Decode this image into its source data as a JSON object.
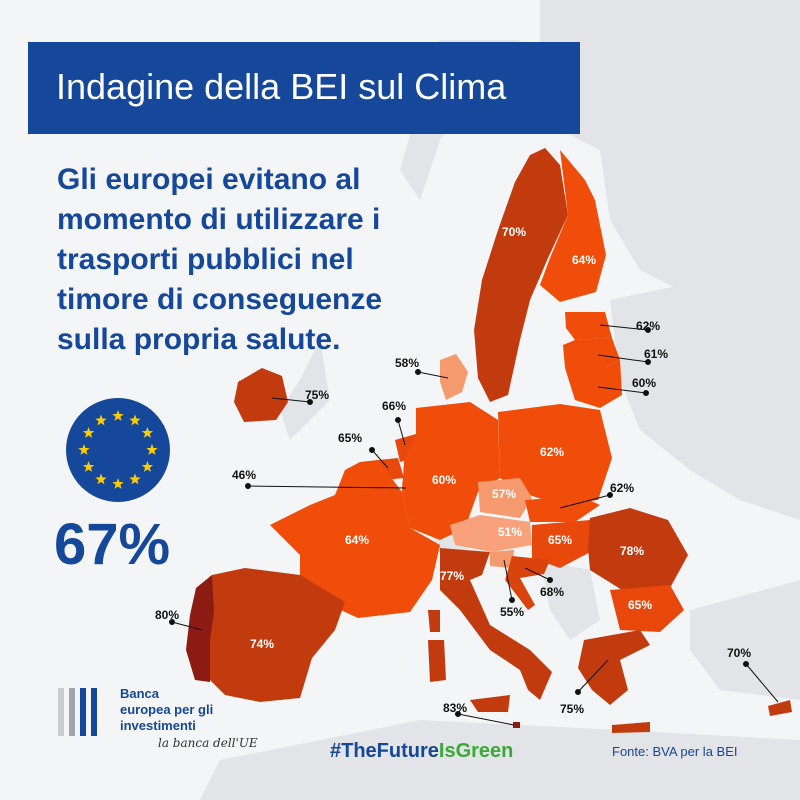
{
  "header": {
    "title": "Indagine della BEI sul Clima"
  },
  "headline": {
    "lines": [
      "Gli europei evitano al",
      "momento di utilizzare i",
      "trasporti pubblici nel",
      "timore di conseguenze",
      "sulla propria salute."
    ]
  },
  "eu_average": {
    "value": "67%"
  },
  "map": {
    "countries": [
      {
        "id": "sweden",
        "value": "70%",
        "color": "#c23b0e"
      },
      {
        "id": "finland",
        "value": "64%",
        "color": "#f04d0a"
      },
      {
        "id": "estonia",
        "value": "62%",
        "color": "#f04d0a"
      },
      {
        "id": "latvia",
        "value": "61%",
        "color": "#f04d0a"
      },
      {
        "id": "lithuania",
        "value": "60%",
        "color": "#f04d0a"
      },
      {
        "id": "denmark",
        "value": "58%",
        "color": "#f59a6e"
      },
      {
        "id": "ireland",
        "value": "75%",
        "color": "#c23b0e"
      },
      {
        "id": "netherlands",
        "value": "66%",
        "color": "#e8480c"
      },
      {
        "id": "belgium",
        "value": "65%",
        "color": "#e8480c"
      },
      {
        "id": "luxembourg",
        "value": "46%",
        "color": "#f7b08d"
      },
      {
        "id": "germany",
        "value": "60%",
        "color": "#f04d0a"
      },
      {
        "id": "poland",
        "value": "62%",
        "color": "#f04d0a"
      },
      {
        "id": "czechia",
        "value": "57%",
        "color": "#f59a6e"
      },
      {
        "id": "slovakia",
        "value": "62%",
        "color": "#f04d0a"
      },
      {
        "id": "austria",
        "value": "51%",
        "color": "#f7a27a"
      },
      {
        "id": "hungary",
        "value": "65%",
        "color": "#e8480c"
      },
      {
        "id": "romania",
        "value": "78%",
        "color": "#c23b0e"
      },
      {
        "id": "bulgaria",
        "value": "65%",
        "color": "#e8480c"
      },
      {
        "id": "france",
        "value": "64%",
        "color": "#f04d0a"
      },
      {
        "id": "italy",
        "value": "77%",
        "color": "#c23b0e"
      },
      {
        "id": "slovenia",
        "value": "55%",
        "color": "#f59a6e"
      },
      {
        "id": "croatia",
        "value": "68%",
        "color": "#d9430c"
      },
      {
        "id": "greece",
        "value": "75%",
        "color": "#c23b0e"
      },
      {
        "id": "cyprus",
        "value": "70%",
        "color": "#c23b0e"
      },
      {
        "id": "malta",
        "value": "83%",
        "color": "#8c1b14"
      },
      {
        "id": "spain",
        "value": "74%",
        "color": "#c23b0e"
      },
      {
        "id": "portugal",
        "value": "80%",
        "color": "#8c1b14"
      }
    ]
  },
  "logo": {
    "lines": [
      "Banca",
      "europea per gli",
      "investimenti"
    ],
    "tagline": "la banca dell'UE"
  },
  "hashtag": {
    "part1": "#TheFuture",
    "part2": "IsGreen"
  },
  "source": "Fonte: BVA per la BEI",
  "colors": {
    "brand_blue": "#15479a",
    "hashtag_green": "#3aa935",
    "map_background": "#f4f5f7",
    "non_eu_land": "#e2e4e7"
  }
}
